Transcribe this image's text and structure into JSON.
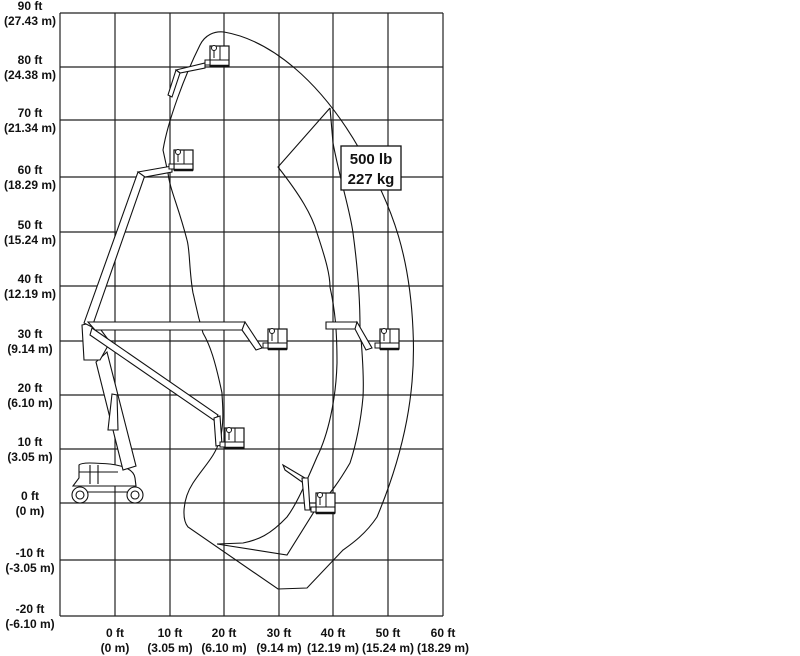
{
  "diagram": {
    "y_axis_labels": [
      {
        "ft": "90 ft",
        "m": "(27.43 m)"
      },
      {
        "ft": "80 ft",
        "m": "(24.38 m)"
      },
      {
        "ft": "70 ft",
        "m": "(21.34 m)"
      },
      {
        "ft": "60 ft",
        "m": "(18.29 m)"
      },
      {
        "ft": "50 ft",
        "m": "(15.24 m)"
      },
      {
        "ft": "40 ft",
        "m": "(12.19 m)"
      },
      {
        "ft": "30 ft",
        "m": "(9.14 m)"
      },
      {
        "ft": "20 ft",
        "m": "(6.10 m)"
      },
      {
        "ft": "10 ft",
        "m": "(3.05 m)"
      },
      {
        "ft": "0 ft",
        "m": "(0 m)"
      },
      {
        "ft": "-10 ft",
        "m": "(-3.05 m)"
      },
      {
        "ft": "-20 ft",
        "m": "(-6.10 m)"
      }
    ],
    "x_axis_labels": [
      {
        "ft": "0 ft",
        "m": "(0 m)"
      },
      {
        "ft": "10 ft",
        "m": "(3.05 m)"
      },
      {
        "ft": "20 ft",
        "m": "(6.10 m)"
      },
      {
        "ft": "30 ft",
        "m": "(9.14 m)"
      },
      {
        "ft": "40 ft",
        "m": "(12.19 m)"
      },
      {
        "ft": "50 ft",
        "m": "(15.24 m)"
      },
      {
        "ft": "60 ft",
        "m": "(18.29 m)"
      }
    ],
    "capacity": {
      "lb": "500 lb",
      "kg": "227 kg"
    },
    "line_color": "#111111"
  }
}
